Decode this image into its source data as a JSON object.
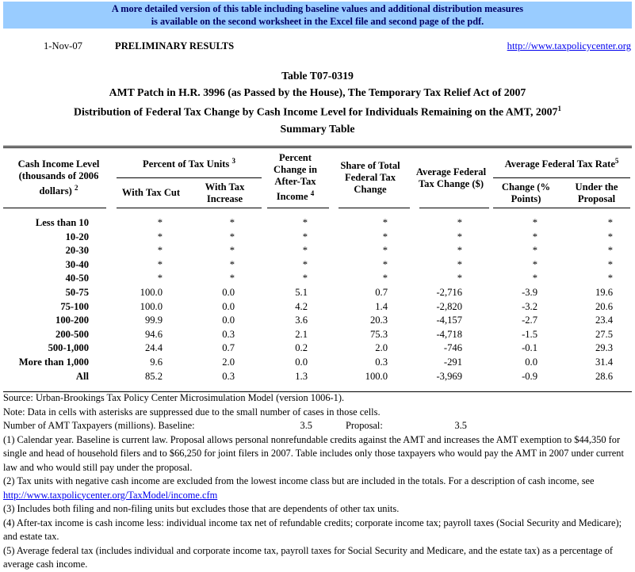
{
  "banner": {
    "line1": "A more detailed version of this table including baseline values and additional distribution measures",
    "line2": "is available on the second worksheet in the Excel file and second page of the pdf.",
    "bg_color": "#99CCFF",
    "text_color": "#000066"
  },
  "meta": {
    "date": "1-Nov-07",
    "status": "PRELIMINARY RESULTS",
    "link": "http://www.taxpolicycenter.org"
  },
  "title": {
    "line1": "Table T07-0319",
    "line2": "AMT Patch in H.R. 3996 (as Passed by the House), The Temporary Tax Relief Act of 2007",
    "line3": "Distribution of Federal Tax Change by Cash Income Level for Individuals Remaining on the AMT, 2007",
    "line3_sup": "1",
    "line4": "Summary Table"
  },
  "table": {
    "columns": {
      "cash": {
        "label": "Cash Income Level (thousands of 2006 dollars)",
        "sup": "2"
      },
      "pct_units_group": {
        "label": "Percent of Tax Units",
        "sup": "3"
      },
      "with_cut": "With Tax Cut",
      "with_increase": "With Tax Increase",
      "pct_change": {
        "label": "Percent Change in After-Tax Income",
        "sup": "4"
      },
      "share": "Share of Total Federal Tax Change",
      "avg_change": "Average Federal Tax Change ($)",
      "rate_group": {
        "label": "Average Federal Tax Rate",
        "sup": "5"
      },
      "rate_change": "Change (% Points)",
      "rate_proposal": "Under the Proposal"
    },
    "rows": [
      {
        "label": "Less than 10",
        "values": [
          "*",
          "*",
          "*",
          "*",
          "*",
          "*",
          "*"
        ]
      },
      {
        "label": "10-20",
        "values": [
          "*",
          "*",
          "*",
          "*",
          "*",
          "*",
          "*"
        ]
      },
      {
        "label": "20-30",
        "values": [
          "*",
          "*",
          "*",
          "*",
          "*",
          "*",
          "*"
        ]
      },
      {
        "label": "30-40",
        "values": [
          "*",
          "*",
          "*",
          "*",
          "*",
          "*",
          "*"
        ]
      },
      {
        "label": "40-50",
        "values": [
          "*",
          "*",
          "*",
          "*",
          "*",
          "*",
          "*"
        ]
      },
      {
        "label": "50-75",
        "values": [
          "100.0",
          "0.0",
          "5.1",
          "0.7",
          "-2,716",
          "-3.9",
          "19.6"
        ]
      },
      {
        "label": "75-100",
        "values": [
          "100.0",
          "0.0",
          "4.2",
          "1.4",
          "-2,820",
          "-3.2",
          "20.6"
        ]
      },
      {
        "label": "100-200",
        "values": [
          "99.9",
          "0.0",
          "3.6",
          "20.3",
          "-4,157",
          "-2.7",
          "23.4"
        ]
      },
      {
        "label": "200-500",
        "values": [
          "94.6",
          "0.3",
          "2.1",
          "75.3",
          "-4,718",
          "-1.5",
          "27.5"
        ]
      },
      {
        "label": "500-1,000",
        "values": [
          "24.4",
          "0.7",
          "0.2",
          "2.0",
          "-746",
          "-0.1",
          "29.3"
        ]
      },
      {
        "label": "More than 1,000",
        "values": [
          "9.6",
          "2.0",
          "0.0",
          "0.3",
          "-291",
          "0.0",
          "31.4"
        ]
      },
      {
        "label": "All",
        "values": [
          "85.2",
          "0.3",
          "1.3",
          "100.0",
          "-3,969",
          "-0.9",
          "28.6"
        ]
      }
    ]
  },
  "footer": {
    "source": "Source: Urban-Brookings Tax Policy Center Microsimulation Model (version 1006-1).",
    "note": "Note: Data in cells with asterisks are suppressed due to the small number of cases in those cells.",
    "taxpayers": {
      "label": "Number of AMT Taxpayers (millions).  Baseline:",
      "baseline_value": "3.5",
      "proposal_label": "Proposal:",
      "proposal_value": "3.5"
    },
    "footnote1": "(1) Calendar year. Baseline is current law. Proposal allows personal nonrefundable credits against the AMT and increases the AMT exemption to $44,350 for single and head of household filers and to $66,250 for joint filers in 2007. Table includes only those taxpayers who would pay the AMT in 2007 under current law and who would still pay under the proposal.",
    "footnote2": "(2) Tax units with negative cash income are excluded from the lowest income class but are included in the totals. For a description of cash income, see",
    "footnote2_link": "http://www.taxpolicycenter.org/TaxModel/income.cfm",
    "footnote3": "(3) Includes both filing and non-filing units but excludes those that are dependents of other tax units.",
    "footnote4": "(4) After-tax income is cash income less: individual income tax net of refundable credits; corporate income tax; payroll taxes (Social Security and Medicare); and estate tax.",
    "footnote5": "(5) Average federal tax (includes individual and corporate income tax, payroll taxes for Social Security and Medicare, and the estate tax) as a percentage of average cash income."
  }
}
